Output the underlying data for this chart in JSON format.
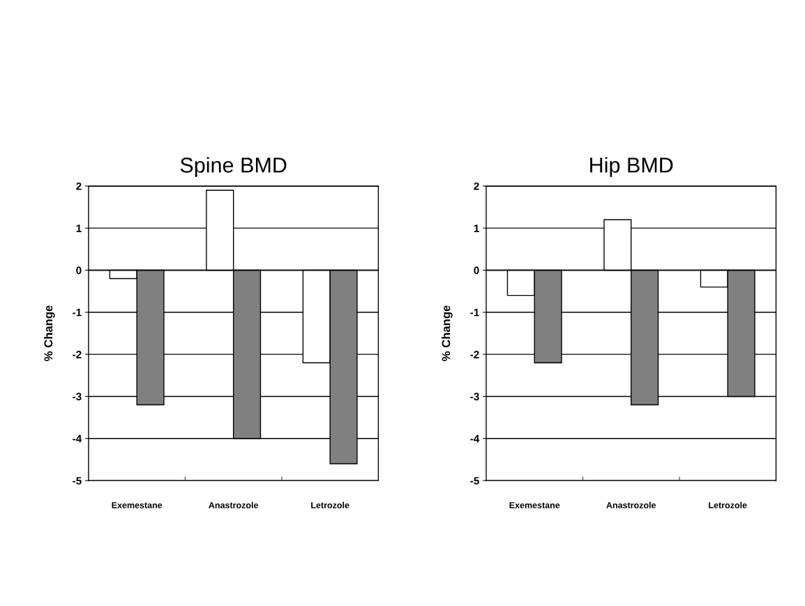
{
  "chart_data": [
    {
      "type": "bar",
      "title": "Spine BMD",
      "ylabel": "% Change",
      "categories": [
        "Exemestane",
        "Anastrozole",
        "Letrozole"
      ],
      "series": [
        {
          "color": "#ffffff",
          "values": [
            -0.2,
            1.9,
            -2.2
          ]
        },
        {
          "color": "#808080",
          "values": [
            -3.2,
            -4.0,
            -4.6
          ]
        }
      ],
      "ylim": [
        -5,
        2
      ],
      "yticks": [
        -5,
        -4,
        -3,
        -2,
        -1,
        0,
        1,
        2
      ],
      "grid": "y",
      "legend": false
    },
    {
      "type": "bar",
      "title": "Hip BMD",
      "ylabel": "% Change",
      "categories": [
        "Exemestane",
        "Anastrozole",
        "Letrozole"
      ],
      "series": [
        {
          "color": "#ffffff",
          "values": [
            -0.6,
            1.2,
            -0.4
          ]
        },
        {
          "color": "#808080",
          "values": [
            -2.2,
            -3.2,
            -3.0
          ]
        }
      ],
      "ylim": [
        -5,
        2
      ],
      "yticks": [
        -5,
        -4,
        -3,
        -2,
        -1,
        0,
        1,
        2
      ],
      "grid": "y",
      "legend": false
    }
  ]
}
